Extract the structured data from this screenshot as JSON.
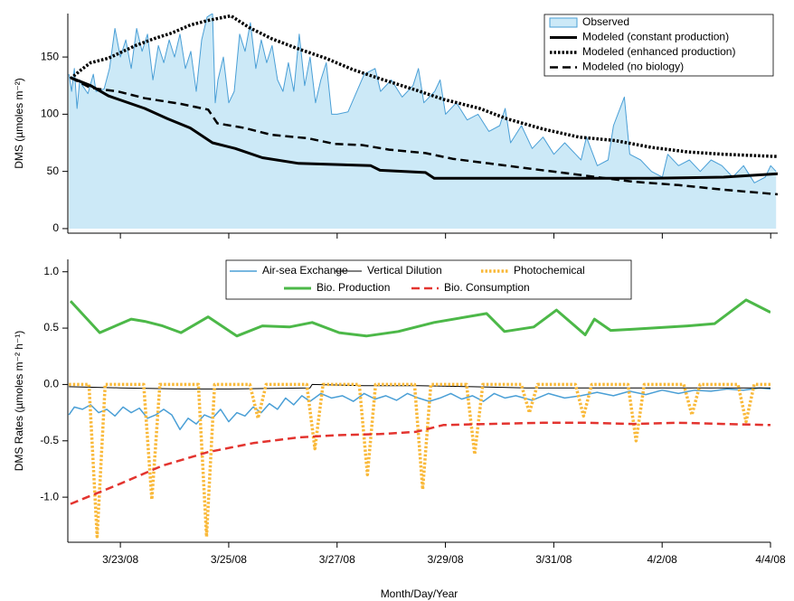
{
  "chart_data": [
    {
      "type": "line",
      "ylabel": "DMS (µmoles m⁻²)",
      "legend": "top-right",
      "xlim": [
        22.03,
        35.13
      ],
      "ylim": [
        -4,
        188
      ],
      "yticks": [
        0,
        50,
        100,
        150
      ],
      "series": [
        {
          "name": "Observed",
          "color": "#4a9fd6",
          "fill": "#cce9f7",
          "style": "area",
          "x": [
            22.05,
            22.1,
            22.15,
            22.2,
            22.25,
            22.3,
            22.4,
            22.5,
            22.55,
            22.7,
            22.8,
            22.9,
            23.0,
            23.1,
            23.2,
            23.3,
            23.4,
            23.5,
            23.6,
            23.7,
            23.8,
            23.9,
            24.0,
            24.1,
            24.2,
            24.3,
            24.4,
            24.5,
            24.6,
            24.7,
            24.75,
            24.8,
            24.9,
            25.0,
            25.1,
            25.2,
            25.3,
            25.4,
            25.5,
            25.6,
            25.7,
            25.8,
            25.9,
            26.0,
            26.1,
            26.2,
            26.3,
            26.4,
            26.5,
            26.6,
            26.7,
            26.8,
            26.9,
            27.0,
            27.2,
            27.5,
            27.7,
            27.8,
            28.0,
            28.2,
            28.4,
            28.5,
            28.6,
            28.8,
            28.9,
            29.0,
            29.2,
            29.4,
            29.6,
            29.8,
            30.0,
            30.1,
            30.2,
            30.4,
            30.6,
            30.8,
            31.0,
            31.2,
            31.5,
            31.6,
            31.8,
            32.0,
            32.1,
            32.3,
            32.4,
            32.6,
            32.8,
            33.0,
            33.1,
            33.3,
            33.5,
            33.7,
            33.9,
            34.1,
            34.3,
            34.5,
            34.7,
            34.9,
            35.0,
            35.1
          ],
          "values": [
            135,
            120,
            140,
            105,
            130,
            125,
            118,
            135,
            120,
            122,
            140,
            175,
            150,
            165,
            140,
            175,
            155,
            170,
            130,
            160,
            145,
            165,
            150,
            170,
            140,
            155,
            120,
            165,
            185,
            188,
            110,
            130,
            150,
            110,
            120,
            170,
            155,
            180,
            140,
            165,
            145,
            160,
            130,
            120,
            145,
            120,
            170,
            125,
            150,
            110,
            130,
            145,
            100,
            100,
            102,
            135,
            140,
            120,
            130,
            115,
            125,
            140,
            110,
            120,
            130,
            100,
            110,
            95,
            100,
            85,
            90,
            105,
            75,
            90,
            70,
            80,
            65,
            75,
            60,
            80,
            55,
            60,
            90,
            115,
            65,
            60,
            50,
            45,
            65,
            55,
            60,
            50,
            60,
            55,
            45,
            55,
            40,
            45,
            55,
            50
          ]
        },
        {
          "name": "Modeled (constant production)",
          "color": "#000000",
          "style": "thick",
          "x": [
            22.08,
            22.45,
            22.78,
            23.45,
            23.87,
            24.29,
            24.7,
            25.12,
            25.62,
            26.29,
            27.62,
            27.79,
            28.63,
            28.79,
            29.63,
            31.13,
            32.8,
            34.13,
            35.13
          ],
          "values": [
            132,
            125,
            116,
            105,
            96,
            88,
            75,
            70,
            62,
            57,
            55,
            51,
            49,
            44,
            44,
            44,
            44,
            45,
            48
          ]
        },
        {
          "name": "Modeled (enhanced production)",
          "color": "#000000",
          "style": "dotted",
          "x": [
            22.08,
            22.28,
            22.45,
            22.78,
            23.28,
            23.62,
            23.95,
            24.29,
            24.62,
            25.04,
            25.37,
            25.79,
            26.29,
            26.79,
            27.29,
            27.79,
            28.46,
            28.96,
            29.63,
            30.13,
            30.8,
            31.46,
            32.13,
            32.8,
            33.47,
            34.13,
            35.13
          ],
          "values": [
            131,
            139,
            145,
            149,
            160,
            166,
            171,
            178,
            182,
            186,
            176,
            166,
            157,
            149,
            139,
            131,
            121,
            113,
            105,
            96,
            87,
            80,
            77,
            71,
            67,
            65,
            63
          ]
        },
        {
          "name": "Modeled (no biology)",
          "color": "#000000",
          "style": "dashed",
          "x": [
            22.08,
            22.45,
            22.95,
            23.45,
            24.12,
            24.62,
            24.79,
            25.29,
            25.79,
            26.46,
            26.96,
            27.46,
            27.96,
            28.63,
            29.13,
            29.8,
            30.46,
            31.13,
            31.8,
            32.46,
            33.3,
            34.13,
            35.13
          ],
          "values": [
            132,
            123,
            120,
            114,
            109,
            104,
            92,
            88,
            82,
            79,
            74,
            73,
            69,
            66,
            61,
            57,
            53,
            49,
            45,
            41,
            38,
            34,
            30
          ]
        }
      ]
    },
    {
      "type": "line",
      "ylabel": "DMS Rates (µmoles m⁻² h⁻¹)",
      "xlabel": "Month/Day/Year",
      "legend": "top",
      "xlim": [
        22.03,
        35.0
      ],
      "ylim": [
        -1.4,
        1.11
      ],
      "yticks": [
        {
          "value": 1.0,
          "label": "1.0"
        },
        0.5,
        {
          "value": 0.0,
          "label": "0.0"
        },
        -0.5,
        {
          "value": -1.0,
          "label": "-1.0"
        }
      ],
      "xticks": [
        {
          "value": 23,
          "label": "3/23/08"
        },
        {
          "value": 25,
          "label": "3/25/08"
        },
        {
          "value": 27,
          "label": "3/27/08"
        },
        {
          "value": 29,
          "label": "3/29/08"
        },
        {
          "value": 31,
          "label": "3/31/08"
        },
        {
          "value": 33,
          "label": "4/2/08"
        },
        {
          "value": 35,
          "label": "4/4/08"
        }
      ],
      "series": [
        {
          "name": "Air-sea Exchange",
          "color": "#4a9fd6",
          "style": "solid",
          "x": [
            22.05,
            22.15,
            22.3,
            22.45,
            22.6,
            22.75,
            22.9,
            23.05,
            23.2,
            23.35,
            23.5,
            23.65,
            23.8,
            23.95,
            24.1,
            24.25,
            24.4,
            24.55,
            24.7,
            24.85,
            25.0,
            25.15,
            25.3,
            25.45,
            25.6,
            25.75,
            25.9,
            26.05,
            26.2,
            26.35,
            26.5,
            26.7,
            26.9,
            27.1,
            27.3,
            27.5,
            27.7,
            27.9,
            28.1,
            28.3,
            28.5,
            28.7,
            28.9,
            29.1,
            29.3,
            29.5,
            29.7,
            29.9,
            30.1,
            30.3,
            30.6,
            30.9,
            31.2,
            31.5,
            31.8,
            32.1,
            32.4,
            32.7,
            33.0,
            33.3,
            33.6,
            33.9,
            34.2,
            34.5,
            34.8,
            35.0
          ],
          "values": [
            -0.27,
            -0.2,
            -0.22,
            -0.18,
            -0.25,
            -0.22,
            -0.28,
            -0.2,
            -0.25,
            -0.21,
            -0.3,
            -0.27,
            -0.22,
            -0.27,
            -0.4,
            -0.3,
            -0.35,
            -0.27,
            -0.3,
            -0.22,
            -0.33,
            -0.25,
            -0.28,
            -0.2,
            -0.25,
            -0.17,
            -0.22,
            -0.12,
            -0.18,
            -0.1,
            -0.15,
            -0.08,
            -0.12,
            -0.1,
            -0.15,
            -0.08,
            -0.13,
            -0.1,
            -0.14,
            -0.08,
            -0.12,
            -0.15,
            -0.12,
            -0.08,
            -0.13,
            -0.1,
            -0.15,
            -0.08,
            -0.12,
            -0.1,
            -0.14,
            -0.08,
            -0.12,
            -0.1,
            -0.07,
            -0.1,
            -0.06,
            -0.09,
            -0.05,
            -0.08,
            -0.05,
            -0.06,
            -0.04,
            -0.05,
            -0.03,
            -0.04
          ]
        },
        {
          "name": "Vertical Dilution",
          "color": "#000000",
          "style": "thin",
          "x": [
            22.05,
            23.0,
            24.12,
            25.0,
            26.5,
            26.54,
            27.5,
            28.5,
            29.5,
            30.5,
            31.5,
            32.5,
            33.5,
            35.0
          ],
          "values": [
            -0.02,
            -0.03,
            -0.04,
            -0.04,
            -0.03,
            0.0,
            -0.01,
            -0.01,
            -0.02,
            -0.03,
            -0.03,
            -0.03,
            -0.03,
            -0.03
          ]
        },
        {
          "name": "Photochemical",
          "color": "#f9b93a",
          "style": "dotted",
          "x": [
            22.05,
            22.42,
            22.57,
            22.72,
            23.43,
            23.58,
            23.73,
            24.44,
            24.59,
            24.74,
            25.39,
            25.54,
            25.69,
            26.44,
            26.59,
            26.74,
            27.41,
            27.56,
            27.71,
            28.43,
            28.58,
            28.73,
            29.39,
            29.54,
            29.69,
            30.4,
            30.55,
            30.7,
            31.4,
            31.55,
            31.7,
            32.37,
            32.52,
            32.67,
            33.4,
            33.55,
            33.7,
            34.4,
            34.55,
            34.7,
            35.0
          ],
          "values": [
            0,
            0,
            -1.35,
            0,
            0,
            -1.02,
            0,
            0,
            -1.35,
            0,
            0,
            -0.3,
            0,
            0,
            -0.57,
            0,
            0,
            -0.8,
            0,
            0,
            -0.93,
            0,
            0,
            -0.62,
            0,
            0,
            -0.25,
            0,
            0,
            -0.28,
            0,
            0,
            -0.5,
            0,
            0,
            -0.27,
            0,
            0,
            -0.33,
            0,
            0
          ]
        },
        {
          "name": "Bio. Production",
          "color": "#4cb848",
          "style": "thick",
          "x": [
            22.08,
            22.62,
            23.2,
            23.45,
            23.78,
            24.12,
            24.62,
            25.15,
            25.62,
            26.12,
            26.54,
            27.04,
            27.54,
            28.13,
            28.79,
            29.76,
            30.09,
            30.63,
            31.05,
            31.58,
            31.75,
            32.05,
            32.47,
            33.47,
            33.97,
            34.55,
            35.0
          ],
          "values": [
            0.74,
            0.46,
            0.58,
            0.56,
            0.52,
            0.46,
            0.6,
            0.43,
            0.52,
            0.51,
            0.55,
            0.46,
            0.43,
            0.47,
            0.55,
            0.63,
            0.47,
            0.51,
            0.66,
            0.44,
            0.58,
            0.48,
            0.49,
            0.52,
            0.54,
            0.75,
            0.64
          ]
        },
        {
          "name": "Bio. Consumption",
          "color": "#e3342f",
          "style": "dashed",
          "x": [
            22.08,
            23.0,
            23.78,
            24.62,
            25.45,
            26.29,
            26.99,
            27.79,
            28.46,
            28.96,
            29.8,
            30.8,
            31.63,
            32.47,
            33.3,
            34.13,
            35.0
          ],
          "values": [
            -1.06,
            -0.88,
            -0.72,
            -0.6,
            -0.52,
            -0.47,
            -0.45,
            -0.44,
            -0.42,
            -0.36,
            -0.35,
            -0.34,
            -0.34,
            -0.35,
            -0.34,
            -0.35,
            -0.36
          ]
        }
      ]
    }
  ]
}
